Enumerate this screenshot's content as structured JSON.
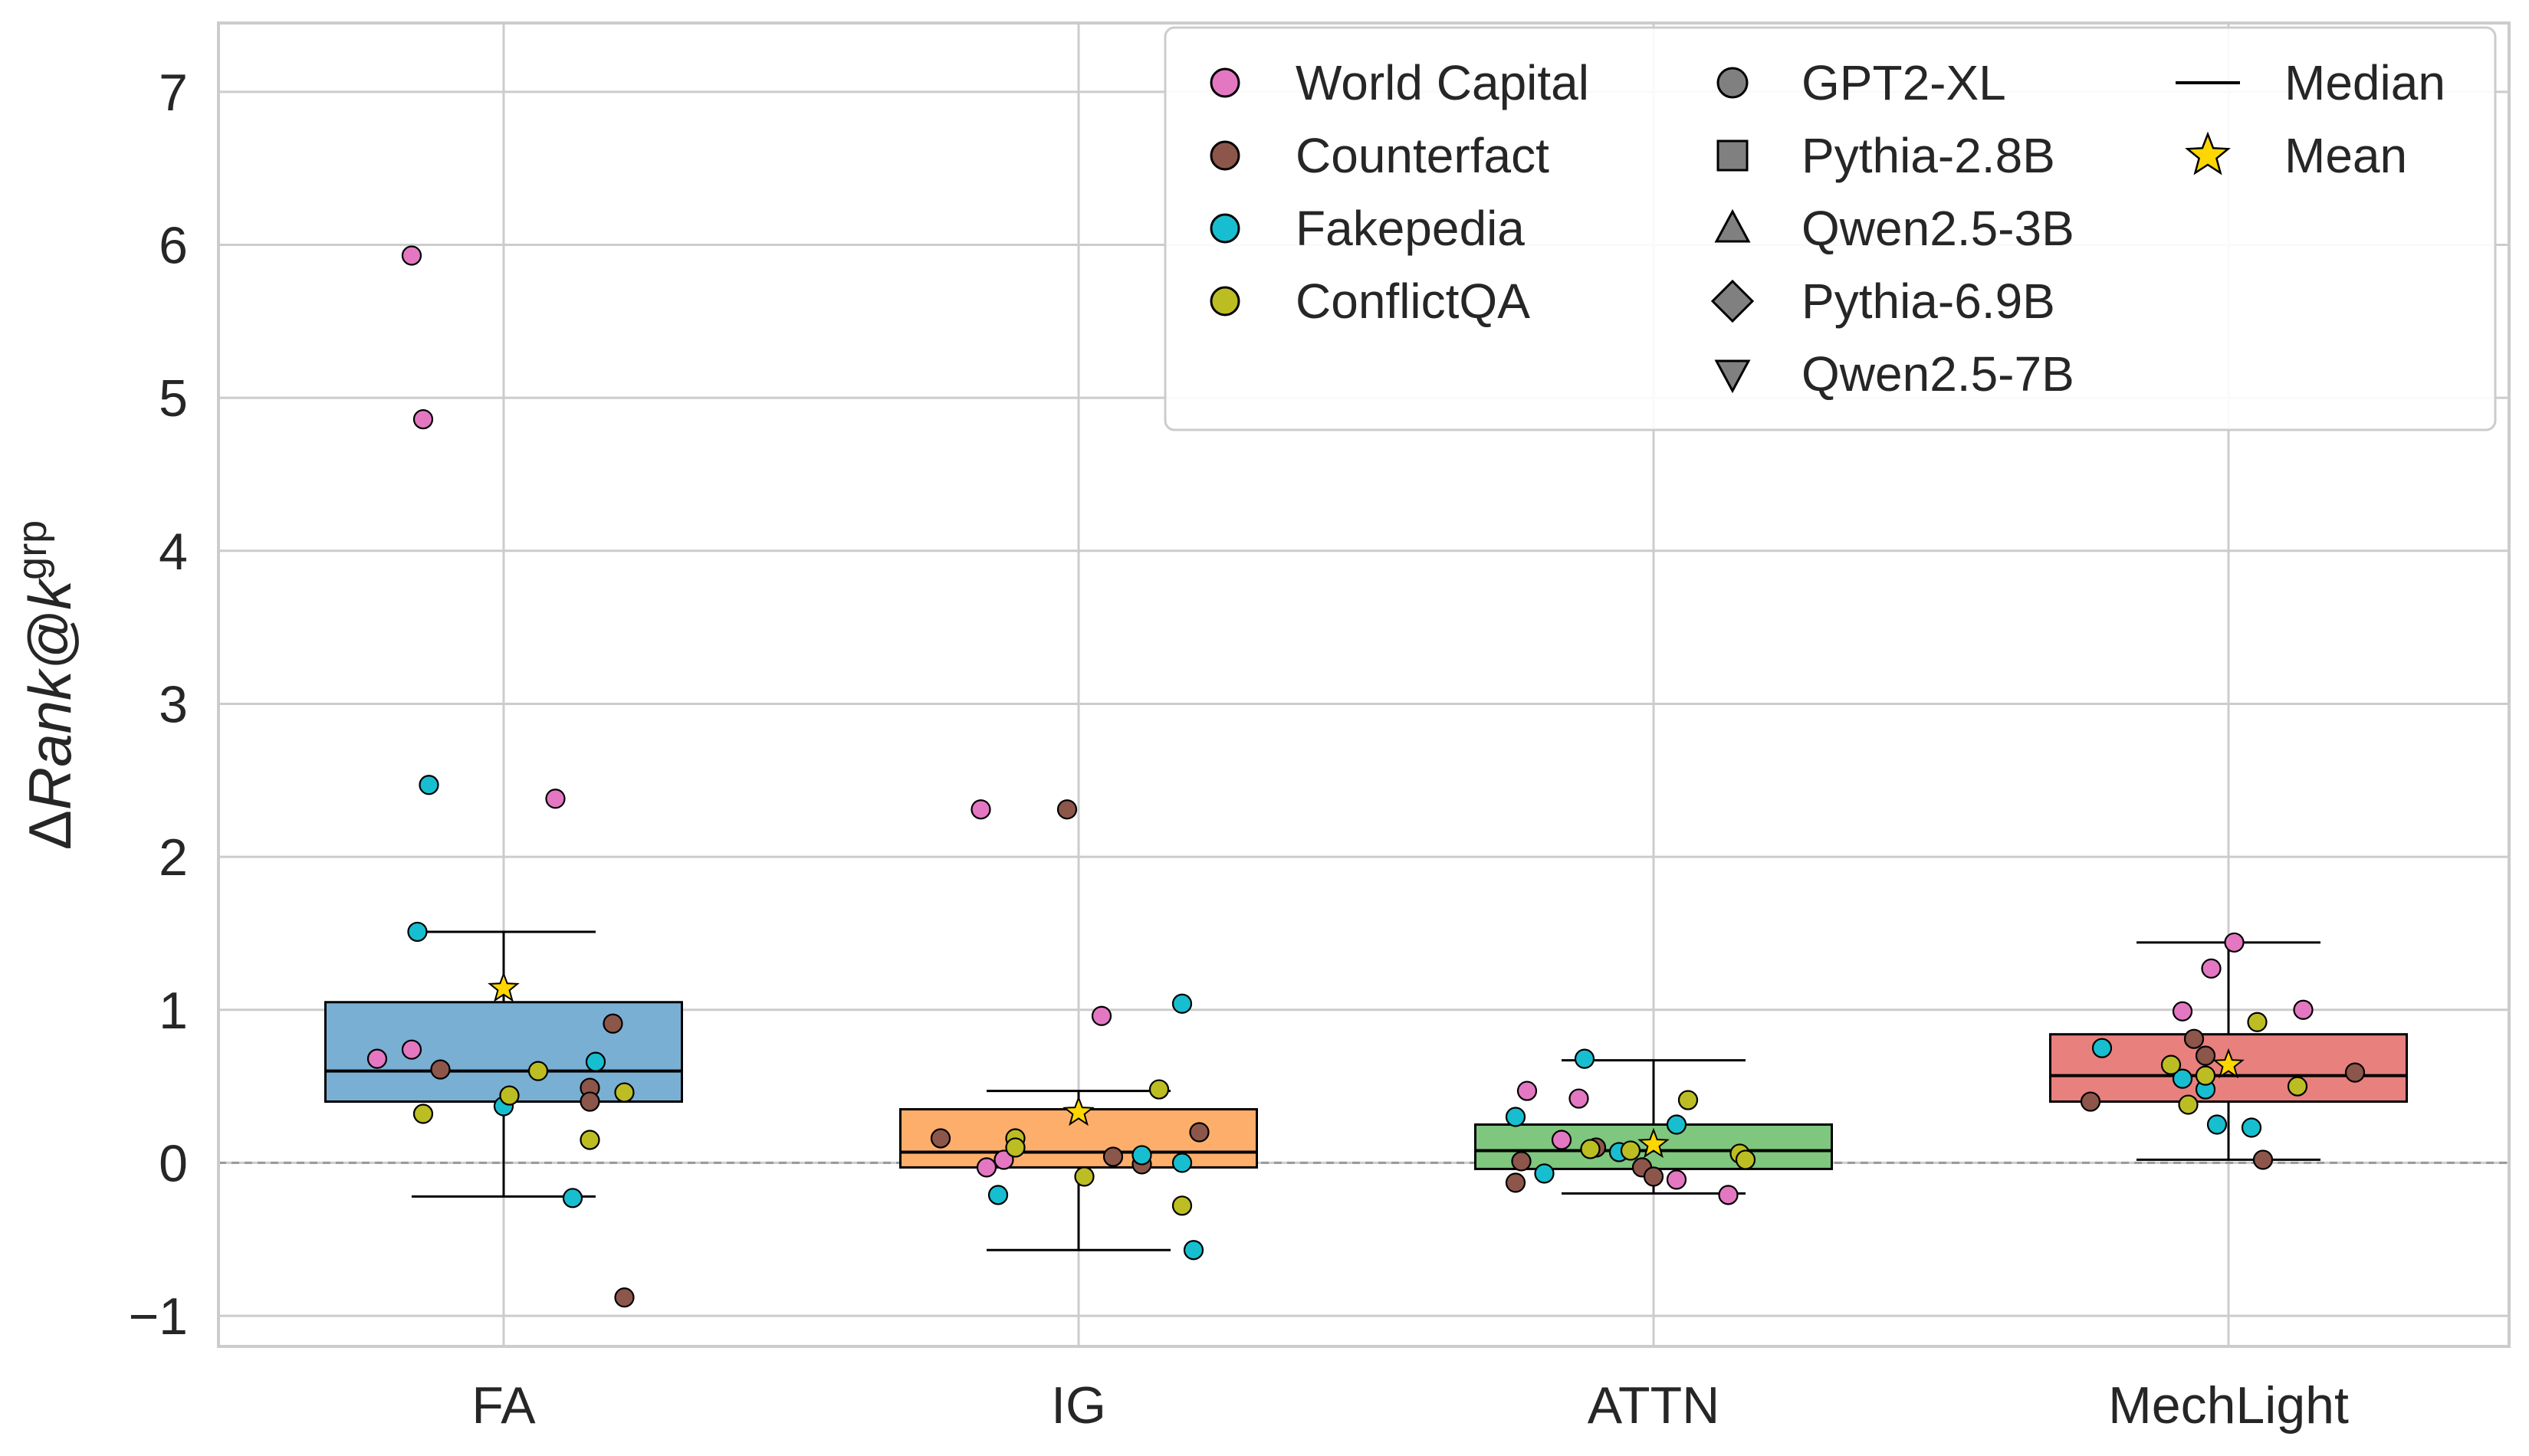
{
  "chart_data": {
    "type": "box",
    "ylabel_prefix": "Δ",
    "ylabel_main": "Rank@k",
    "ylabel_sup": "grp",
    "categories": [
      "FA",
      "IG",
      "ATTN",
      "MechLight"
    ],
    "ylim": [
      -1.2,
      7.45
    ],
    "yticks": [
      -1,
      0,
      1,
      2,
      3,
      4,
      5,
      6,
      7
    ],
    "ytick_labels": [
      "−1",
      "0",
      "1",
      "2",
      "3",
      "4",
      "5",
      "6",
      "7"
    ],
    "grid": true,
    "reference_line": 0,
    "legend_position": "top-right",
    "boxes": [
      {
        "category": "FA",
        "color": "#7aafd4",
        "q1": 0.4,
        "median": 0.6,
        "q3": 1.05,
        "whisker_low": -0.22,
        "whisker_high": 1.51,
        "mean": 1.14
      },
      {
        "category": "IG",
        "color": "#fdae6b",
        "q1": -0.03,
        "median": 0.07,
        "q3": 0.35,
        "whisker_low": -0.57,
        "whisker_high": 0.47,
        "mean": 0.33
      },
      {
        "category": "ATTN",
        "color": "#7fc67f",
        "q1": -0.04,
        "median": 0.08,
        "q3": 0.25,
        "whisker_low": -0.2,
        "whisker_high": 0.67,
        "mean": 0.12
      },
      {
        "category": "MechLight",
        "color": "#e8807e",
        "q1": 0.4,
        "median": 0.57,
        "q3": 0.84,
        "whisker_low": 0.02,
        "whisker_high": 1.44,
        "mean": 0.64
      }
    ],
    "dataset_colors": {
      "World Capital": "#e377c2",
      "Counterfact": "#8c564b",
      "Fakepedia": "#17becf",
      "ConflictQA": "#bcbd22"
    },
    "points": [
      {
        "category": "FA",
        "offset": -0.16,
        "y": 5.93,
        "dataset": "World Capital"
      },
      {
        "category": "FA",
        "offset": -0.14,
        "y": 4.86,
        "dataset": "World Capital"
      },
      {
        "category": "FA",
        "offset": 0.09,
        "y": 2.38,
        "dataset": "World Capital"
      },
      {
        "category": "FA",
        "offset": -0.22,
        "y": 0.68,
        "dataset": "World Capital"
      },
      {
        "category": "FA",
        "offset": -0.16,
        "y": 0.74,
        "dataset": "World Capital"
      },
      {
        "category": "FA",
        "offset": -0.13,
        "y": 2.47,
        "dataset": "Fakepedia"
      },
      {
        "category": "FA",
        "offset": -0.15,
        "y": 1.51,
        "dataset": "Fakepedia"
      },
      {
        "category": "FA",
        "offset": 0.16,
        "y": 0.66,
        "dataset": "Fakepedia"
      },
      {
        "category": "FA",
        "offset": 0.0,
        "y": 0.37,
        "dataset": "Fakepedia"
      },
      {
        "category": "FA",
        "offset": 0.12,
        "y": -0.23,
        "dataset": "Fakepedia"
      },
      {
        "category": "FA",
        "offset": 0.19,
        "y": 0.91,
        "dataset": "Counterfact"
      },
      {
        "category": "FA",
        "offset": -0.11,
        "y": 0.61,
        "dataset": "Counterfact"
      },
      {
        "category": "FA",
        "offset": 0.15,
        "y": 0.49,
        "dataset": "Counterfact"
      },
      {
        "category": "FA",
        "offset": 0.15,
        "y": 0.4,
        "dataset": "Counterfact"
      },
      {
        "category": "FA",
        "offset": 0.21,
        "y": -0.88,
        "dataset": "Counterfact"
      },
      {
        "category": "FA",
        "offset": -0.14,
        "y": 0.32,
        "dataset": "ConflictQA"
      },
      {
        "category": "FA",
        "offset": 0.01,
        "y": 0.44,
        "dataset": "ConflictQA"
      },
      {
        "category": "FA",
        "offset": 0.06,
        "y": 0.6,
        "dataset": "ConflictQA"
      },
      {
        "category": "FA",
        "offset": 0.21,
        "y": 0.46,
        "dataset": "ConflictQA"
      },
      {
        "category": "FA",
        "offset": 0.15,
        "y": 0.15,
        "dataset": "ConflictQA"
      },
      {
        "category": "IG",
        "offset": -0.17,
        "y": 2.31,
        "dataset": "World Capital"
      },
      {
        "category": "IG",
        "offset": 0.04,
        "y": 0.96,
        "dataset": "World Capital"
      },
      {
        "category": "IG",
        "offset": -0.16,
        "y": -0.03,
        "dataset": "World Capital"
      },
      {
        "category": "IG",
        "offset": -0.13,
        "y": 0.02,
        "dataset": "World Capital"
      },
      {
        "category": "IG",
        "offset": -0.02,
        "y": 2.31,
        "dataset": "Counterfact"
      },
      {
        "category": "IG",
        "offset": -0.24,
        "y": 0.16,
        "dataset": "Counterfact"
      },
      {
        "category": "IG",
        "offset": 0.06,
        "y": 0.04,
        "dataset": "Counterfact"
      },
      {
        "category": "IG",
        "offset": 0.11,
        "y": -0.01,
        "dataset": "Counterfact"
      },
      {
        "category": "IG",
        "offset": 0.21,
        "y": 0.2,
        "dataset": "Counterfact"
      },
      {
        "category": "IG",
        "offset": 0.18,
        "y": 1.04,
        "dataset": "Fakepedia"
      },
      {
        "category": "IG",
        "offset": -0.14,
        "y": -0.21,
        "dataset": "Fakepedia"
      },
      {
        "category": "IG",
        "offset": 0.11,
        "y": 0.05,
        "dataset": "Fakepedia"
      },
      {
        "category": "IG",
        "offset": 0.18,
        "y": 0.0,
        "dataset": "Fakepedia"
      },
      {
        "category": "IG",
        "offset": 0.2,
        "y": -0.57,
        "dataset": "Fakepedia"
      },
      {
        "category": "IG",
        "offset": 0.14,
        "y": 0.48,
        "dataset": "ConflictQA"
      },
      {
        "category": "IG",
        "offset": -0.11,
        "y": 0.16,
        "dataset": "ConflictQA"
      },
      {
        "category": "IG",
        "offset": -0.11,
        "y": 0.1,
        "dataset": "ConflictQA"
      },
      {
        "category": "IG",
        "offset": 0.01,
        "y": -0.09,
        "dataset": "ConflictQA"
      },
      {
        "category": "IG",
        "offset": 0.18,
        "y": -0.28,
        "dataset": "ConflictQA"
      },
      {
        "category": "ATTN",
        "offset": -0.22,
        "y": 0.47,
        "dataset": "World Capital"
      },
      {
        "category": "ATTN",
        "offset": -0.13,
        "y": 0.42,
        "dataset": "World Capital"
      },
      {
        "category": "ATTN",
        "offset": -0.16,
        "y": 0.15,
        "dataset": "World Capital"
      },
      {
        "category": "ATTN",
        "offset": 0.04,
        "y": -0.11,
        "dataset": "World Capital"
      },
      {
        "category": "ATTN",
        "offset": 0.13,
        "y": -0.21,
        "dataset": "World Capital"
      },
      {
        "category": "ATTN",
        "offset": -0.24,
        "y": -0.13,
        "dataset": "Counterfact"
      },
      {
        "category": "ATTN",
        "offset": -0.23,
        "y": 0.01,
        "dataset": "Counterfact"
      },
      {
        "category": "ATTN",
        "offset": -0.1,
        "y": 0.1,
        "dataset": "Counterfact"
      },
      {
        "category": "ATTN",
        "offset": -0.02,
        "y": -0.03,
        "dataset": "Counterfact"
      },
      {
        "category": "ATTN",
        "offset": 0.0,
        "y": -0.09,
        "dataset": "Counterfact"
      },
      {
        "category": "ATTN",
        "offset": -0.12,
        "y": 0.68,
        "dataset": "Fakepedia"
      },
      {
        "category": "ATTN",
        "offset": -0.24,
        "y": 0.3,
        "dataset": "Fakepedia"
      },
      {
        "category": "ATTN",
        "offset": 0.04,
        "y": 0.25,
        "dataset": "Fakepedia"
      },
      {
        "category": "ATTN",
        "offset": -0.19,
        "y": -0.07,
        "dataset": "Fakepedia"
      },
      {
        "category": "ATTN",
        "offset": -0.06,
        "y": 0.07,
        "dataset": "Fakepedia"
      },
      {
        "category": "ATTN",
        "offset": 0.06,
        "y": 0.41,
        "dataset": "ConflictQA"
      },
      {
        "category": "ATTN",
        "offset": -0.11,
        "y": 0.09,
        "dataset": "ConflictQA"
      },
      {
        "category": "ATTN",
        "offset": -0.04,
        "y": 0.08,
        "dataset": "ConflictQA"
      },
      {
        "category": "ATTN",
        "offset": 0.15,
        "y": 0.06,
        "dataset": "ConflictQA"
      },
      {
        "category": "ATTN",
        "offset": 0.16,
        "y": 0.02,
        "dataset": "ConflictQA"
      },
      {
        "category": "MechLight",
        "offset": 0.01,
        "y": 1.44,
        "dataset": "World Capital"
      },
      {
        "category": "MechLight",
        "offset": -0.03,
        "y": 1.27,
        "dataset": "World Capital"
      },
      {
        "category": "MechLight",
        "offset": -0.08,
        "y": 0.99,
        "dataset": "World Capital"
      },
      {
        "category": "MechLight",
        "offset": 0.13,
        "y": 1.0,
        "dataset": "World Capital"
      },
      {
        "category": "MechLight",
        "offset": -0.06,
        "y": 0.81,
        "dataset": "Counterfact"
      },
      {
        "category": "MechLight",
        "offset": -0.04,
        "y": 0.7,
        "dataset": "Counterfact"
      },
      {
        "category": "MechLight",
        "offset": -0.24,
        "y": 0.4,
        "dataset": "Counterfact"
      },
      {
        "category": "MechLight",
        "offset": 0.22,
        "y": 0.59,
        "dataset": "Counterfact"
      },
      {
        "category": "MechLight",
        "offset": 0.06,
        "y": 0.02,
        "dataset": "Counterfact"
      },
      {
        "category": "MechLight",
        "offset": -0.22,
        "y": 0.75,
        "dataset": "Fakepedia"
      },
      {
        "category": "MechLight",
        "offset": -0.08,
        "y": 0.55,
        "dataset": "Fakepedia"
      },
      {
        "category": "MechLight",
        "offset": -0.04,
        "y": 0.48,
        "dataset": "Fakepedia"
      },
      {
        "category": "MechLight",
        "offset": -0.02,
        "y": 0.25,
        "dataset": "Fakepedia"
      },
      {
        "category": "MechLight",
        "offset": 0.04,
        "y": 0.23,
        "dataset": "Fakepedia"
      },
      {
        "category": "MechLight",
        "offset": -0.1,
        "y": 0.64,
        "dataset": "ConflictQA"
      },
      {
        "category": "MechLight",
        "offset": 0.05,
        "y": 0.92,
        "dataset": "ConflictQA"
      },
      {
        "category": "MechLight",
        "offset": -0.07,
        "y": 0.38,
        "dataset": "ConflictQA"
      },
      {
        "category": "MechLight",
        "offset": -0.04,
        "y": 0.57,
        "dataset": "ConflictQA"
      },
      {
        "category": "MechLight",
        "offset": 0.12,
        "y": 0.5,
        "dataset": "ConflictQA"
      }
    ],
    "legend": {
      "datasets": [
        {
          "label": "World Capital",
          "color": "#e377c2"
        },
        {
          "label": "Counterfact",
          "color": "#8c564b"
        },
        {
          "label": "Fakepedia",
          "color": "#17becf"
        },
        {
          "label": "ConflictQA",
          "color": "#bcbd22"
        }
      ],
      "models": [
        {
          "label": "GPT2-XL",
          "marker": "circle"
        },
        {
          "label": "Pythia-2.8B",
          "marker": "square"
        },
        {
          "label": "Qwen2.5-3B",
          "marker": "triangle-up"
        },
        {
          "label": "Pythia-6.9B",
          "marker": "diamond"
        },
        {
          "label": "Qwen2.5-7B",
          "marker": "triangle-down"
        }
      ],
      "stats": [
        {
          "label": "Median",
          "marker": "line"
        },
        {
          "label": "Mean",
          "marker": "star",
          "color": "#ffd700"
        }
      ]
    }
  }
}
